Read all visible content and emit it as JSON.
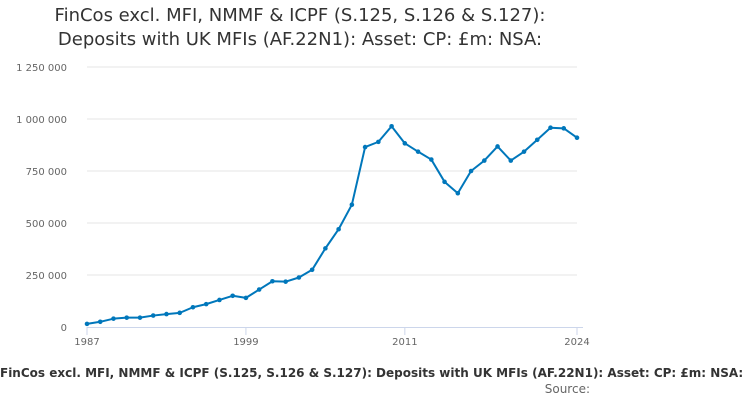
{
  "chart_data": {
    "type": "line",
    "title_line1": "FinCos excl. MFI, NMMF & ICPF (S.125, S.126 & S.127):",
    "title_line2": "Deposits with UK MFIs (AF.22N1): Asset: CP: £m: NSA:",
    "x": [
      1987,
      1988,
      1989,
      1990,
      1991,
      1992,
      1993,
      1994,
      1995,
      1996,
      1997,
      1998,
      1999,
      2000,
      2001,
      2002,
      2003,
      2004,
      2005,
      2006,
      2007,
      2008,
      2009,
      2010,
      2011,
      2012,
      2013,
      2014,
      2015,
      2016,
      2017,
      2018,
      2019,
      2020,
      2021,
      2022,
      2023,
      2024
    ],
    "series": [
      {
        "name": "FinCos excl. MFI, NMMF & ICPF (S.125, S.126 & S.127): Deposits with UK MFIs (AF.22N1): Asset: CP: £m: NSA:",
        "values": [
          15000,
          25000,
          40000,
          45000,
          45000,
          55000,
          62000,
          68000,
          95000,
          110000,
          130000,
          150000,
          140000,
          180000,
          220000,
          218000,
          238000,
          275000,
          378000,
          470000,
          588000,
          865000,
          890000,
          965000,
          883000,
          843000,
          805000,
          698000,
          643000,
          750000,
          800000,
          868000,
          800000,
          843000,
          900000,
          958000,
          955000,
          910000
        ]
      }
    ],
    "x_ticks": [
      "1987",
      "1999",
      "2011",
      "2024"
    ],
    "y_ticks": [
      "0",
      "250 000",
      "500 000",
      "750 000",
      "1 000 000",
      "1 250 000"
    ],
    "ylim": [
      0,
      1250000
    ],
    "grid": true,
    "xlabel": "",
    "ylabel": "",
    "color": "#0077bb"
  },
  "source_label": "Source:"
}
